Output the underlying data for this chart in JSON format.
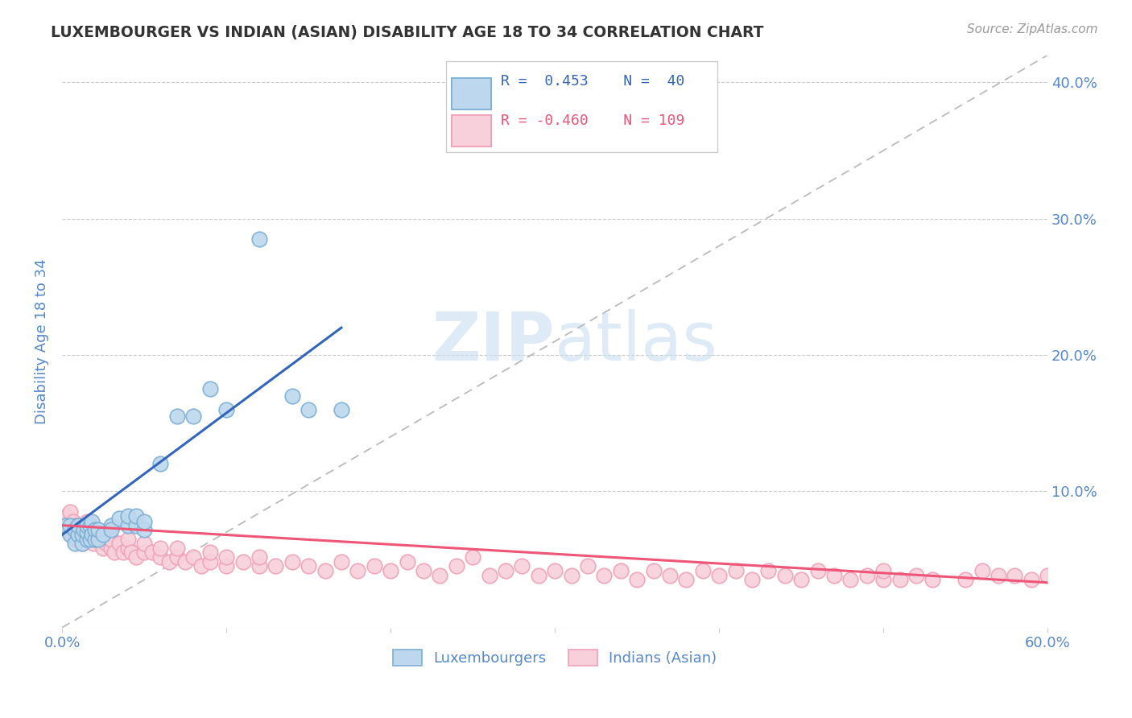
{
  "title": "LUXEMBOURGER VS INDIAN (ASIAN) DISABILITY AGE 18 TO 34 CORRELATION CHART",
  "source_text": "Source: ZipAtlas.com",
  "ylabel": "Disability Age 18 to 34",
  "xlim": [
    0.0,
    0.6
  ],
  "ylim": [
    0.0,
    0.42
  ],
  "color_blue": "#7BAFD4",
  "color_blue_fill": "#BDD8EE",
  "color_pink": "#F0A0B8",
  "color_pink_fill": "#F8D0DC",
  "color_trend_blue": "#3366BB",
  "color_trend_pink": "#EE5577",
  "color_ref_line": "#BBBBBB",
  "color_axis_label": "#5588CC",
  "color_title": "#333333",
  "color_source": "#999999",
  "watermark_color": "#C8DFF0",
  "blue_scatter_x": [
    0.002,
    0.005,
    0.005,
    0.008,
    0.008,
    0.01,
    0.01,
    0.012,
    0.012,
    0.013,
    0.015,
    0.015,
    0.015,
    0.017,
    0.017,
    0.018,
    0.018,
    0.02,
    0.02,
    0.022,
    0.022,
    0.025,
    0.03,
    0.03,
    0.035,
    0.04,
    0.04,
    0.045,
    0.045,
    0.05,
    0.05,
    0.06,
    0.07,
    0.08,
    0.09,
    0.1,
    0.12,
    0.14,
    0.15,
    0.17
  ],
  "blue_scatter_y": [
    0.075,
    0.068,
    0.075,
    0.062,
    0.072,
    0.068,
    0.075,
    0.062,
    0.068,
    0.072,
    0.065,
    0.07,
    0.075,
    0.065,
    0.075,
    0.068,
    0.078,
    0.065,
    0.072,
    0.065,
    0.072,
    0.068,
    0.075,
    0.072,
    0.08,
    0.075,
    0.082,
    0.075,
    0.082,
    0.072,
    0.078,
    0.12,
    0.155,
    0.155,
    0.175,
    0.16,
    0.285,
    0.17,
    0.16,
    0.16
  ],
  "blue_trend_x": [
    0.0,
    0.17
  ],
  "blue_trend_y": [
    0.068,
    0.22
  ],
  "pink_trend_x": [
    0.0,
    0.6
  ],
  "pink_trend_y": [
    0.075,
    0.033
  ],
  "ref_line_x": [
    0.0,
    0.6
  ],
  "ref_line_y": [
    0.0,
    0.42
  ],
  "pink_scatter_x": [
    0.002,
    0.003,
    0.004,
    0.005,
    0.005,
    0.006,
    0.006,
    0.007,
    0.007,
    0.008,
    0.008,
    0.009,
    0.009,
    0.01,
    0.01,
    0.011,
    0.011,
    0.012,
    0.012,
    0.013,
    0.014,
    0.015,
    0.015,
    0.016,
    0.017,
    0.018,
    0.019,
    0.02,
    0.02,
    0.021,
    0.022,
    0.025,
    0.025,
    0.027,
    0.03,
    0.03,
    0.032,
    0.035,
    0.037,
    0.04,
    0.04,
    0.042,
    0.045,
    0.05,
    0.05,
    0.055,
    0.06,
    0.06,
    0.065,
    0.07,
    0.07,
    0.075,
    0.08,
    0.085,
    0.09,
    0.09,
    0.1,
    0.1,
    0.11,
    0.12,
    0.12,
    0.13,
    0.14,
    0.15,
    0.16,
    0.17,
    0.18,
    0.19,
    0.2,
    0.21,
    0.22,
    0.23,
    0.24,
    0.25,
    0.26,
    0.27,
    0.28,
    0.29,
    0.3,
    0.31,
    0.32,
    0.33,
    0.34,
    0.35,
    0.36,
    0.37,
    0.38,
    0.39,
    0.4,
    0.41,
    0.42,
    0.43,
    0.44,
    0.45,
    0.46,
    0.47,
    0.48,
    0.49,
    0.5,
    0.5,
    0.51,
    0.52,
    0.53,
    0.55,
    0.56,
    0.57,
    0.58,
    0.59,
    0.6
  ],
  "pink_scatter_y": [
    0.075,
    0.082,
    0.072,
    0.078,
    0.085,
    0.068,
    0.075,
    0.072,
    0.078,
    0.065,
    0.075,
    0.068,
    0.075,
    0.065,
    0.072,
    0.068,
    0.075,
    0.062,
    0.072,
    0.068,
    0.065,
    0.072,
    0.078,
    0.065,
    0.072,
    0.068,
    0.062,
    0.065,
    0.072,
    0.065,
    0.068,
    0.065,
    0.058,
    0.062,
    0.058,
    0.065,
    0.055,
    0.062,
    0.055,
    0.058,
    0.065,
    0.055,
    0.052,
    0.055,
    0.062,
    0.055,
    0.052,
    0.058,
    0.048,
    0.052,
    0.058,
    0.048,
    0.052,
    0.045,
    0.048,
    0.055,
    0.045,
    0.052,
    0.048,
    0.045,
    0.052,
    0.045,
    0.048,
    0.045,
    0.042,
    0.048,
    0.042,
    0.045,
    0.042,
    0.048,
    0.042,
    0.038,
    0.045,
    0.052,
    0.038,
    0.042,
    0.045,
    0.038,
    0.042,
    0.038,
    0.045,
    0.038,
    0.042,
    0.035,
    0.042,
    0.038,
    0.035,
    0.042,
    0.038,
    0.042,
    0.035,
    0.042,
    0.038,
    0.035,
    0.042,
    0.038,
    0.035,
    0.038,
    0.035,
    0.042,
    0.035,
    0.038,
    0.035,
    0.035,
    0.042,
    0.038,
    0.038,
    0.035,
    0.038
  ]
}
